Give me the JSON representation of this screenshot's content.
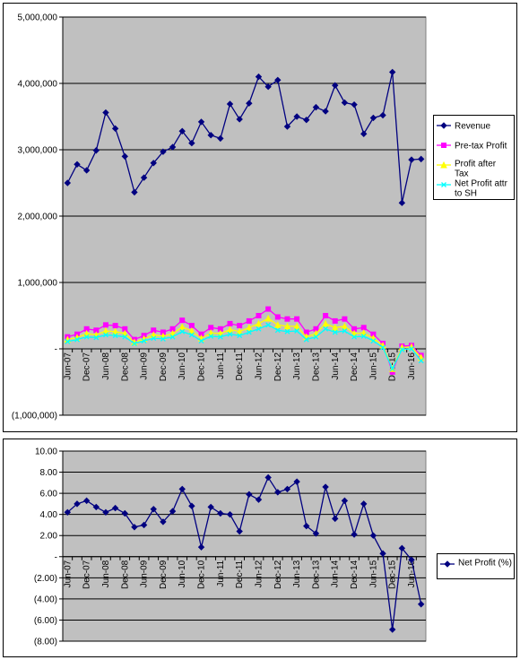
{
  "chart_data": [
    {
      "type": "line",
      "categories": [
        "Jun-07",
        null,
        "Dec-07",
        null,
        "Jun-08",
        null,
        "Dec-08",
        null,
        "Jun-09",
        null,
        "Dec-09",
        null,
        "Jun-10",
        null,
        "Dec-10",
        null,
        "Jun-11",
        null,
        "Dec-11",
        null,
        "Jun-12",
        null,
        "Dec-12",
        null,
        "Jun-13",
        null,
        "Dec-13",
        null,
        "Jun-14",
        null,
        "Dec-14",
        null,
        "Jun-15",
        null,
        "Dec-15",
        null,
        "Jun-16",
        null
      ],
      "series": [
        {
          "name": "Revenue",
          "color": "#000080",
          "marker": "diamond",
          "values": [
            2500000,
            2780000,
            2690000,
            2990000,
            3560000,
            3320000,
            2900000,
            2360000,
            2580000,
            2800000,
            2970000,
            3040000,
            3280000,
            3100000,
            3420000,
            3220000,
            3170000,
            3690000,
            3460000,
            3700000,
            4100000,
            3950000,
            4050000,
            3350000,
            3500000,
            3450000,
            3640000,
            3580000,
            3970000,
            3710000,
            3680000,
            3240000,
            3480000,
            3520000,
            4170000,
            2200000,
            2850000,
            2860000
          ]
        },
        {
          "name": "Pre-tax Profit",
          "color": "#ff00ff",
          "marker": "square",
          "values": [
            180000,
            220000,
            300000,
            280000,
            360000,
            350000,
            300000,
            140000,
            200000,
            280000,
            250000,
            300000,
            430000,
            350000,
            220000,
            320000,
            300000,
            380000,
            350000,
            420000,
            500000,
            600000,
            480000,
            450000,
            450000,
            250000,
            300000,
            500000,
            420000,
            450000,
            300000,
            320000,
            220000,
            80000,
            -350000,
            40000,
            50000,
            -100000
          ]
        },
        {
          "name": "Profit after Tax",
          "color": "#ffff00",
          "marker": "triangle",
          "values": [
            140000,
            170000,
            230000,
            210000,
            270000,
            260000,
            230000,
            100000,
            150000,
            210000,
            190000,
            230000,
            330000,
            270000,
            160000,
            240000,
            230000,
            290000,
            260000,
            320000,
            380000,
            460000,
            360000,
            340000,
            340000,
            180000,
            230000,
            380000,
            320000,
            340000,
            230000,
            240000,
            160000,
            50000,
            -300000,
            20000,
            30000,
            -130000
          ]
        },
        {
          "name": "Net Profit attr to SH",
          "color": "#00ffff",
          "marker": "x",
          "values": [
            110000,
            140000,
            180000,
            170000,
            210000,
            200000,
            180000,
            80000,
            120000,
            160000,
            150000,
            180000,
            260000,
            210000,
            120000,
            190000,
            180000,
            220000,
            200000,
            250000,
            300000,
            360000,
            280000,
            260000,
            270000,
            140000,
            180000,
            300000,
            250000,
            270000,
            180000,
            190000,
            120000,
            20000,
            -300000,
            -10000,
            0,
            -180000
          ]
        }
      ],
      "ylim": [
        -1000000,
        5000000
      ],
      "yticks": [
        {
          "value": -1000000,
          "label": "(1,000,000)"
        },
        {
          "value": 0,
          "label": "-"
        },
        {
          "value": 1000000,
          "label": "1,000,000"
        },
        {
          "value": 2000000,
          "label": "2,000,000"
        },
        {
          "value": 3000000,
          "label": "3,000,000"
        },
        {
          "value": 4000000,
          "label": "4,000,000"
        },
        {
          "value": 5000000,
          "label": "5,000,000"
        }
      ],
      "grid": true,
      "legend": "right"
    },
    {
      "type": "line",
      "categories": [
        "Jun-07",
        null,
        "Dec-07",
        null,
        "Jun-08",
        null,
        "Dec-08",
        null,
        "Jun-09",
        null,
        "Dec-09",
        null,
        "Jun-10",
        null,
        "Dec-10",
        null,
        "Jun-11",
        null,
        "Dec-11",
        null,
        "Jun-12",
        null,
        "Dec-12",
        null,
        "Jun-13",
        null,
        "Dec-13",
        null,
        "Jun-14",
        null,
        "Dec-14",
        null,
        "Jun-15",
        null,
        "Dec-15",
        null,
        "Jun-16",
        null
      ],
      "series": [
        {
          "name": "Net Profit (%)",
          "color": "#000080",
          "marker": "diamond",
          "values": [
            4.2,
            5.0,
            5.3,
            4.7,
            4.2,
            4.6,
            4.1,
            2.8,
            3.0,
            4.5,
            3.3,
            4.3,
            6.4,
            4.8,
            0.9,
            4.7,
            4.1,
            4.0,
            2.4,
            5.9,
            5.4,
            7.5,
            6.1,
            6.4,
            7.1,
            2.9,
            2.2,
            6.6,
            3.6,
            5.3,
            2.1,
            5.0,
            2.0,
            0.3,
            -6.9,
            0.8,
            -0.3,
            -4.5
          ]
        }
      ],
      "ylim": [
        -8,
        10
      ],
      "yticks": [
        {
          "value": -8,
          "label": "(8.00)"
        },
        {
          "value": -6,
          "label": "(6.00)"
        },
        {
          "value": -4,
          "label": "(4.00)"
        },
        {
          "value": -2,
          "label": "(2.00)"
        },
        {
          "value": 0,
          "label": "-"
        },
        {
          "value": 2,
          "label": "2.00"
        },
        {
          "value": 4,
          "label": "4.00"
        },
        {
          "value": 6,
          "label": "6.00"
        },
        {
          "value": 8,
          "label": "8.00"
        },
        {
          "value": 10,
          "label": "10.00"
        }
      ],
      "grid": true,
      "legend": "right"
    }
  ]
}
